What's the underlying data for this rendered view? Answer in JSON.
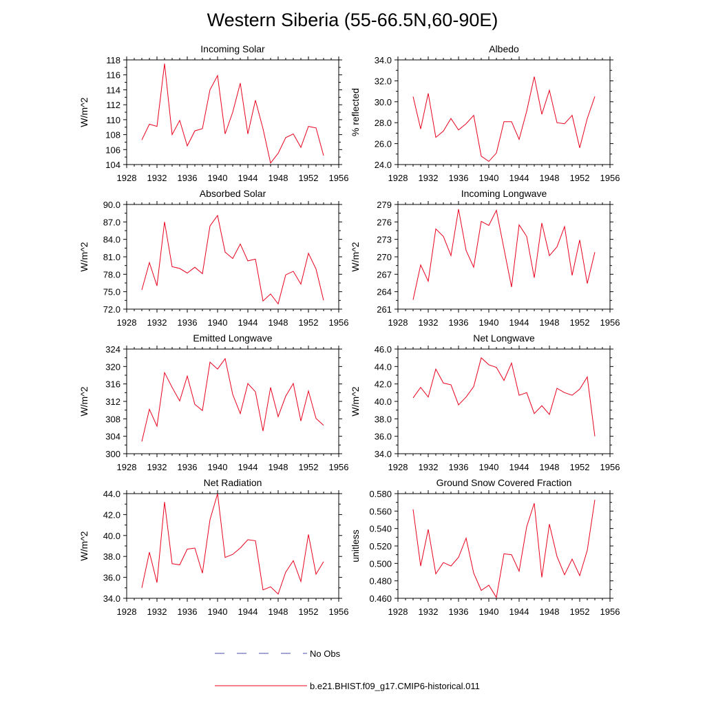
{
  "figure": {
    "title": "Western Siberia (55-66.5N,60-90E)"
  },
  "legend": {
    "placement": "bottom",
    "entries": [
      {
        "label": "No Obs",
        "color": "#4a4aa8",
        "style": "dashed"
      },
      {
        "label": "b.e21.BHIST.f09_g17.CMIP6-historical.011",
        "color": "#e8001c",
        "style": "solid"
      }
    ]
  },
  "chart_data": [
    {
      "type": "line",
      "title": "Incoming Solar",
      "ylabel": "W/m^2",
      "xlim": [
        1928,
        1956
      ],
      "xticks": [
        "1928",
        "1932",
        "1936",
        "1940",
        "1944",
        "1948",
        "1952",
        "1956"
      ],
      "ylim": [
        104,
        118
      ],
      "yticks": [
        "104",
        "106",
        "108",
        "110",
        "112",
        "114",
        "116",
        "118"
      ],
      "series": [
        {
          "color": "#e8001c",
          "x": [
            1930,
            1931,
            1932,
            1933,
            1934,
            1935,
            1936,
            1937,
            1938,
            1939,
            1940,
            1941,
            1942,
            1943,
            1944,
            1945,
            1946,
            1947,
            1948,
            1949,
            1950,
            1951,
            1952,
            1953,
            1954
          ],
          "y": [
            107.3,
            109.4,
            109.1,
            117.5,
            108.0,
            109.9,
            106.5,
            108.5,
            108.8,
            114.0,
            115.9,
            108.1,
            111.0,
            114.9,
            108.1,
            112.6,
            108.8,
            104.2,
            105.5,
            107.6,
            108.1,
            106.3,
            109.1,
            108.9,
            105.2
          ]
        }
      ]
    },
    {
      "type": "line",
      "title": "Albedo",
      "ylabel": "% reflected",
      "xlim": [
        1928,
        1956
      ],
      "xticks": [
        "1928",
        "1932",
        "1936",
        "1940",
        "1944",
        "1948",
        "1952",
        "1956"
      ],
      "ylim": [
        24.0,
        34.0
      ],
      "yticks": [
        "24.0",
        "26.0",
        "28.0",
        "30.0",
        "32.0",
        "34.0"
      ],
      "series": [
        {
          "color": "#e8001c",
          "x": [
            1930,
            1931,
            1932,
            1933,
            1934,
            1935,
            1936,
            1937,
            1938,
            1939,
            1940,
            1941,
            1942,
            1943,
            1944,
            1945,
            1946,
            1947,
            1948,
            1949,
            1950,
            1951,
            1952,
            1953,
            1954
          ],
          "y": [
            30.5,
            27.4,
            30.8,
            26.6,
            27.2,
            28.4,
            27.3,
            27.9,
            28.7,
            24.8,
            24.3,
            25.1,
            28.1,
            28.1,
            26.4,
            29.1,
            32.4,
            28.8,
            31.1,
            28.0,
            27.9,
            28.7,
            25.6,
            28.4,
            30.5
          ]
        }
      ]
    },
    {
      "type": "line",
      "title": "Absorbed Solar",
      "ylabel": "W/m^2",
      "xlim": [
        1928,
        1956
      ],
      "xticks": [
        "1928",
        "1932",
        "1936",
        "1940",
        "1944",
        "1948",
        "1952",
        "1956"
      ],
      "ylim": [
        72.0,
        90.0
      ],
      "yticks": [
        "72.0",
        "75.0",
        "78.0",
        "81.0",
        "84.0",
        "87.0",
        "90.0"
      ],
      "series": [
        {
          "color": "#e8001c",
          "x": [
            1930,
            1931,
            1932,
            1933,
            1934,
            1935,
            1936,
            1937,
            1938,
            1939,
            1940,
            1941,
            1942,
            1943,
            1944,
            1945,
            1946,
            1947,
            1948,
            1949,
            1950,
            1951,
            1952,
            1953,
            1954
          ],
          "y": [
            75.3,
            80.0,
            76.0,
            87.0,
            79.3,
            79.0,
            78.2,
            79.2,
            78.1,
            86.3,
            88.1,
            81.8,
            80.7,
            83.2,
            80.3,
            80.6,
            73.4,
            74.6,
            72.9,
            77.9,
            78.5,
            76.3,
            81.6,
            78.9,
            73.5
          ]
        }
      ]
    },
    {
      "type": "line",
      "title": "Incoming Longwave",
      "ylabel": "W/m^2",
      "xlim": [
        1928,
        1956
      ],
      "xticks": [
        "1928",
        "1932",
        "1936",
        "1940",
        "1944",
        "1948",
        "1952",
        "1956"
      ],
      "ylim": [
        261,
        279
      ],
      "yticks": [
        "261",
        "264",
        "267",
        "270",
        "273",
        "276",
        "279"
      ],
      "series": [
        {
          "color": "#e8001c",
          "x": [
            1930,
            1931,
            1932,
            1933,
            1934,
            1935,
            1936,
            1937,
            1938,
            1939,
            1940,
            1941,
            1942,
            1943,
            1944,
            1945,
            1946,
            1947,
            1948,
            1949,
            1950,
            1951,
            1952,
            1953,
            1954
          ],
          "y": [
            262.6,
            268.6,
            265.8,
            274.8,
            273.5,
            270.2,
            278.2,
            271.1,
            268.2,
            276.1,
            275.4,
            278.0,
            271.4,
            264.8,
            275.5,
            273.5,
            266.4,
            275.8,
            270.2,
            271.7,
            275.2,
            266.8,
            272.9,
            265.4,
            270.8
          ]
        }
      ]
    },
    {
      "type": "line",
      "title": "Emitted Longwave",
      "ylabel": "W/m^2",
      "xlim": [
        1928,
        1956
      ],
      "xticks": [
        "1928",
        "1932",
        "1936",
        "1940",
        "1944",
        "1948",
        "1952",
        "1956"
      ],
      "ylim": [
        300,
        324
      ],
      "yticks": [
        "300",
        "304",
        "308",
        "312",
        "316",
        "320",
        "324"
      ],
      "series": [
        {
          "color": "#e8001c",
          "x": [
            1930,
            1931,
            1932,
            1933,
            1934,
            1935,
            1936,
            1937,
            1938,
            1939,
            1940,
            1941,
            1942,
            1943,
            1944,
            1945,
            1946,
            1947,
            1948,
            1949,
            1950,
            1951,
            1952,
            1953,
            1954
          ],
          "y": [
            302.8,
            310.2,
            306.3,
            318.6,
            315.2,
            312.1,
            317.8,
            311.3,
            309.9,
            321.0,
            319.4,
            321.8,
            313.6,
            309.2,
            316.1,
            314.2,
            305.2,
            315.2,
            308.5,
            313.2,
            316.1,
            307.5,
            314.4,
            308.1,
            306.5
          ]
        }
      ]
    },
    {
      "type": "line",
      "title": "Net Longwave",
      "ylabel": "W/m^2",
      "xlim": [
        1928,
        1956
      ],
      "xticks": [
        "1928",
        "1932",
        "1936",
        "1940",
        "1944",
        "1948",
        "1952",
        "1956"
      ],
      "ylim": [
        34.0,
        46.0
      ],
      "yticks": [
        "34.0",
        "36.0",
        "38.0",
        "40.0",
        "42.0",
        "44.0",
        "46.0"
      ],
      "series": [
        {
          "color": "#e8001c",
          "x": [
            1930,
            1931,
            1932,
            1933,
            1934,
            1935,
            1936,
            1937,
            1938,
            1939,
            1940,
            1941,
            1942,
            1943,
            1944,
            1945,
            1946,
            1947,
            1948,
            1949,
            1950,
            1951,
            1952,
            1953,
            1954
          ],
          "y": [
            40.4,
            41.6,
            40.5,
            43.7,
            42.1,
            41.9,
            39.6,
            40.5,
            41.7,
            45.0,
            44.2,
            43.9,
            42.4,
            44.4,
            40.7,
            41.0,
            38.6,
            39.5,
            38.5,
            41.5,
            41.0,
            40.7,
            41.4,
            42.8,
            36.0
          ]
        }
      ]
    },
    {
      "type": "line",
      "title": "Net Radiation",
      "ylabel": "W/m^2",
      "xlim": [
        1928,
        1956
      ],
      "xticks": [
        "1928",
        "1932",
        "1936",
        "1940",
        "1944",
        "1948",
        "1952",
        "1956"
      ],
      "ylim": [
        34.0,
        44.0
      ],
      "yticks": [
        "34.0",
        "36.0",
        "38.0",
        "40.0",
        "42.0",
        "44.0"
      ],
      "series": [
        {
          "color": "#e8001c",
          "x": [
            1930,
            1931,
            1932,
            1933,
            1934,
            1935,
            1936,
            1937,
            1938,
            1939,
            1940,
            1941,
            1942,
            1943,
            1944,
            1945,
            1946,
            1947,
            1948,
            1949,
            1950,
            1951,
            1952,
            1953,
            1954
          ],
          "y": [
            35.0,
            38.4,
            35.5,
            43.2,
            37.3,
            37.2,
            38.7,
            38.8,
            36.4,
            41.5,
            44.0,
            37.9,
            38.2,
            38.8,
            39.6,
            39.5,
            34.8,
            35.1,
            34.4,
            36.5,
            37.6,
            35.6,
            40.1,
            36.3,
            37.5
          ]
        }
      ]
    },
    {
      "type": "line",
      "title": "Ground Snow Covered Fraction",
      "ylabel": "unitless",
      "xlim": [
        1928,
        1956
      ],
      "xticks": [
        "1928",
        "1932",
        "1936",
        "1940",
        "1944",
        "1948",
        "1952",
        "1956"
      ],
      "ylim": [
        0.46,
        0.58
      ],
      "yticks": [
        "0.460",
        "0.480",
        "0.500",
        "0.520",
        "0.540",
        "0.560",
        "0.580"
      ],
      "series": [
        {
          "color": "#e8001c",
          "x": [
            1930,
            1931,
            1932,
            1933,
            1934,
            1935,
            1936,
            1937,
            1938,
            1939,
            1940,
            1941,
            1942,
            1943,
            1944,
            1945,
            1946,
            1947,
            1948,
            1949,
            1950,
            1951,
            1952,
            1953,
            1954
          ],
          "y": [
            0.562,
            0.497,
            0.539,
            0.488,
            0.501,
            0.497,
            0.507,
            0.529,
            0.489,
            0.469,
            0.475,
            0.461,
            0.511,
            0.51,
            0.491,
            0.542,
            0.569,
            0.484,
            0.545,
            0.508,
            0.487,
            0.505,
            0.486,
            0.515,
            0.573
          ]
        }
      ]
    }
  ]
}
